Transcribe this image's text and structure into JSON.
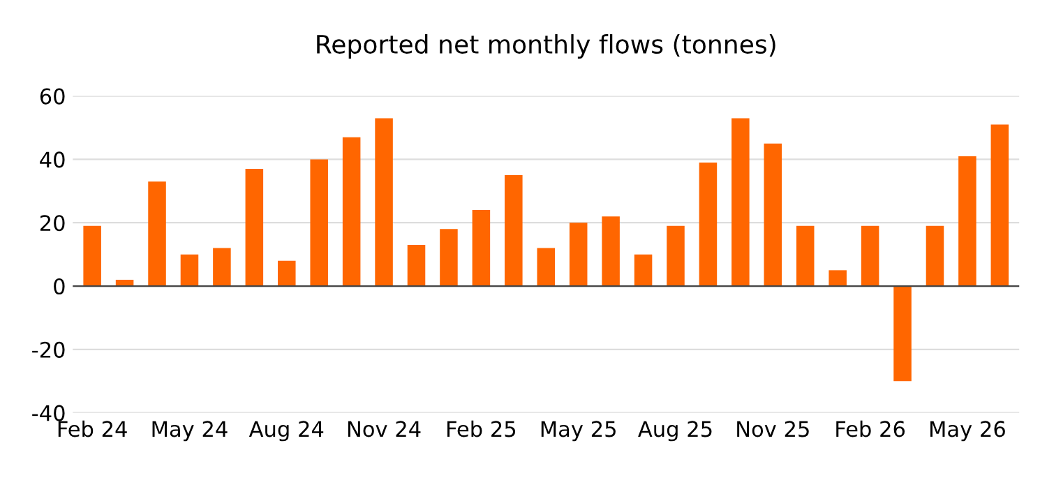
{
  "chart_data": {
    "type": "bar",
    "title": "Reported net monthly flows (tonnes)",
    "categories": [
      "Feb 24",
      null,
      null,
      "May 24",
      null,
      null,
      "Aug 24",
      null,
      null,
      "Nov 24",
      null,
      null,
      "Feb 25",
      null,
      null,
      "May 25",
      null,
      null,
      "Aug 25",
      null,
      null,
      "Nov 25",
      null,
      null,
      "Feb 26",
      null,
      null,
      "May 26",
      null
    ],
    "values": [
      19,
      2,
      33,
      10,
      12,
      37,
      8,
      40,
      47,
      53,
      13,
      18,
      24,
      35,
      12,
      20,
      22,
      10,
      19,
      39,
      53,
      45,
      19,
      5,
      19,
      -30,
      19,
      41,
      51
    ],
    "color": "#ff6600",
    "ylim": [
      -40,
      60
    ],
    "yticks": [
      -40,
      -20,
      0,
      20,
      40,
      60
    ],
    "grid": "y",
    "legend": false
  }
}
